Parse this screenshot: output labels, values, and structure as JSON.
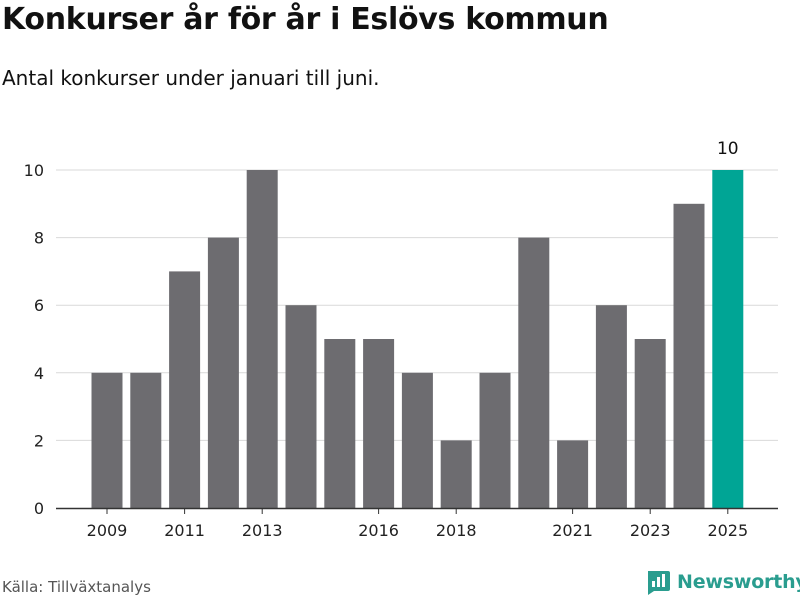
{
  "title": "Konkurser år för år i Eslövs kommun",
  "subtitle": "Antal konkurser under januari till juni.",
  "source": "Källa: Tillväxtanalys",
  "brand": {
    "name": "Newsworthy",
    "icon": "bar-chart-icon",
    "color": "#2a9d8f"
  },
  "colors": {
    "bar": "#6d6c70",
    "highlight": "#00a595",
    "grid": "#d9d9d9",
    "axis": "#333333"
  },
  "chart_data": {
    "type": "bar",
    "categories": [
      "2009",
      "2010",
      "2011",
      "2012",
      "2013",
      "2014",
      "2015",
      "2016",
      "2017",
      "2018",
      "2019",
      "2020",
      "2021",
      "2022",
      "2023",
      "2024",
      "2025"
    ],
    "values": [
      4,
      4,
      7,
      8,
      10,
      6,
      5,
      5,
      4,
      2,
      4,
      8,
      2,
      6,
      5,
      9,
      10
    ],
    "x_tick_labels": [
      "2009",
      "2011",
      "2013",
      "2016",
      "2018",
      "2021",
      "2023",
      "2025"
    ],
    "y_ticks": [
      0,
      2,
      4,
      6,
      8,
      10
    ],
    "ylim": [
      0,
      10
    ],
    "highlight_category": "2025",
    "data_labels": [
      {
        "category": "2025",
        "text": "10"
      }
    ],
    "grid": true,
    "xlabel": "",
    "ylabel": ""
  }
}
